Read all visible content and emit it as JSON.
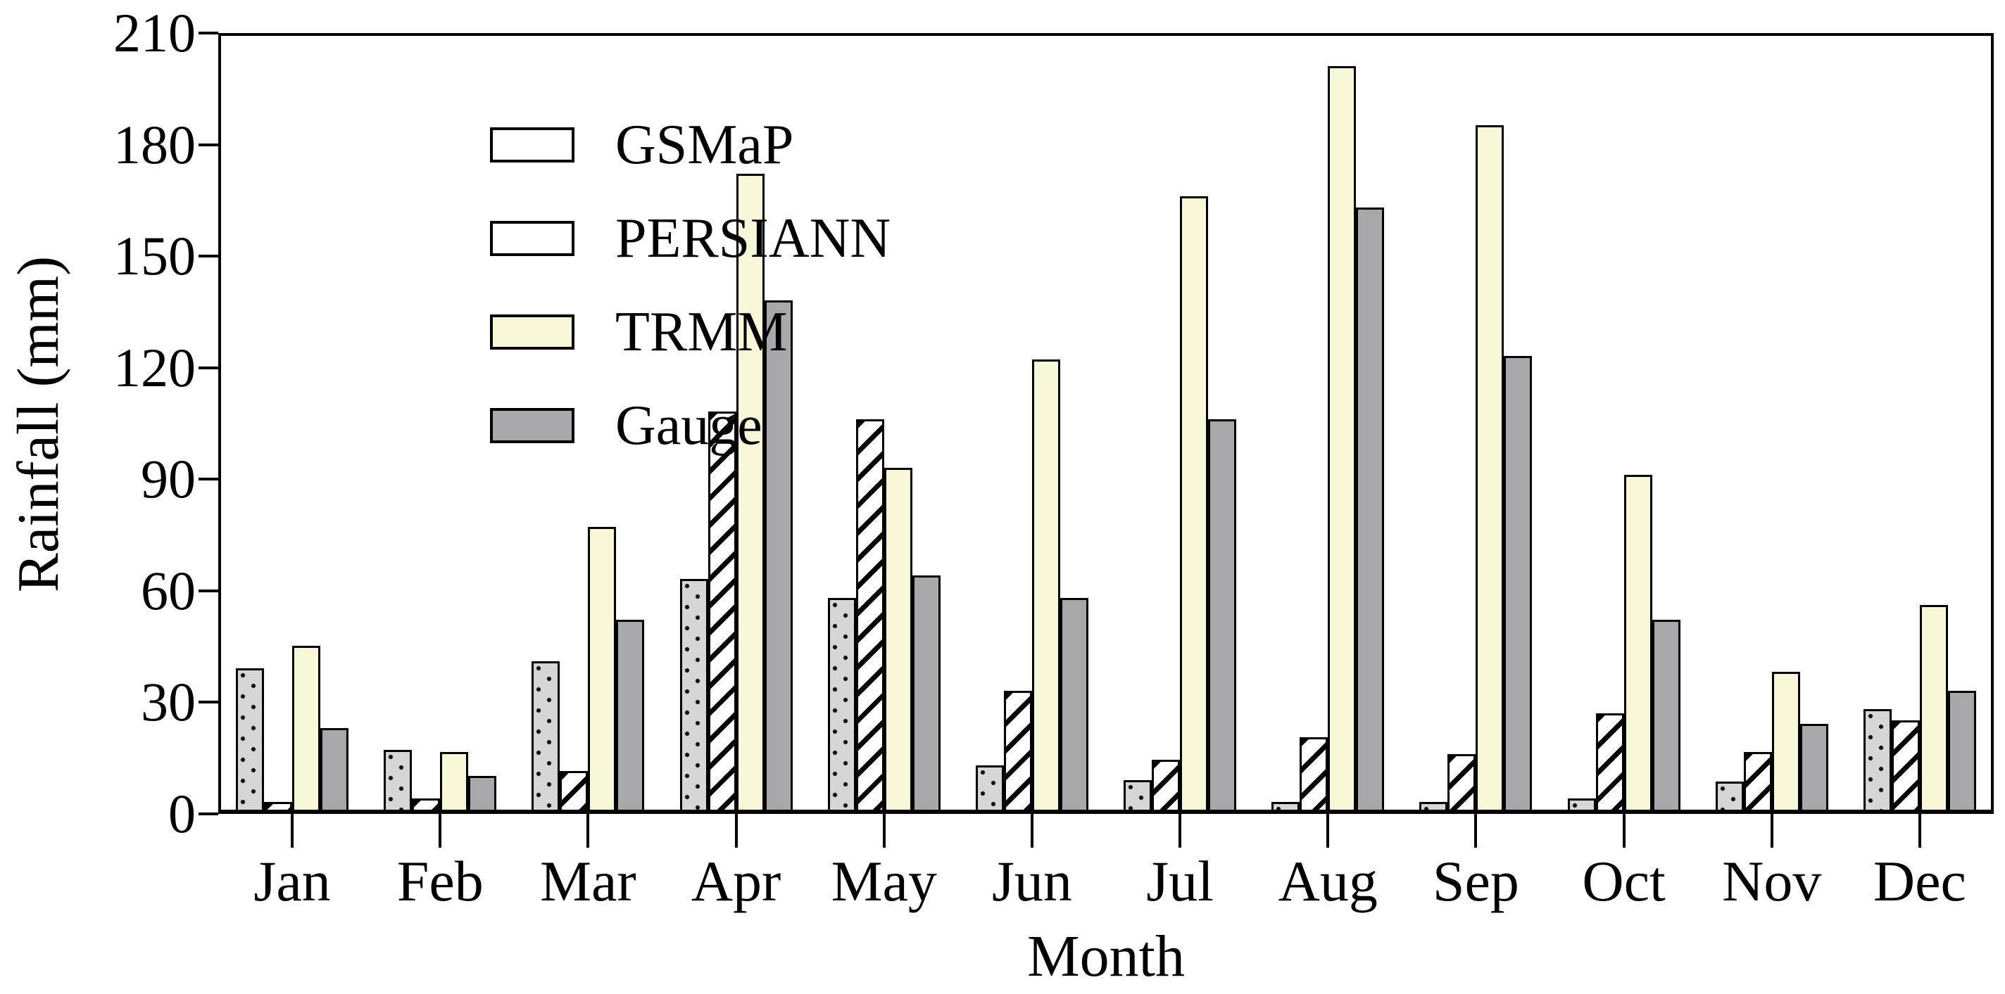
{
  "figure": {
    "background": "#ffffff"
  },
  "chart_data": {
    "type": "bar",
    "title": "",
    "xlabel": "Month",
    "ylabel": "Rainfall (mm)",
    "ylim": [
      0,
      210
    ],
    "yticks": [
      0,
      30,
      60,
      90,
      120,
      150,
      180,
      210
    ],
    "categories": [
      "Jan",
      "Feb",
      "Mar",
      "Apr",
      "May",
      "Jun",
      "Jul",
      "Aug",
      "Sep",
      "Oct",
      "Nov",
      "Dec"
    ],
    "series": [
      {
        "name": "GSMaP",
        "pattern": "dots",
        "fill": "#d6d6d6",
        "pattern_color": "#000000",
        "values": [
          38,
          16,
          40,
          62,
          57,
          12,
          8,
          2,
          2,
          3,
          7.5,
          27
        ]
      },
      {
        "name": "PERSIANN",
        "pattern": "hatch",
        "fill": "#ffffff",
        "pattern_color": "#000000",
        "values": [
          2,
          3,
          10.5,
          107,
          105,
          32,
          13.5,
          19.5,
          15,
          26,
          15.5,
          24
        ]
      },
      {
        "name": "TRMM",
        "pattern": "solid",
        "fill": "#f8f8d9",
        "pattern_color": null,
        "values": [
          44,
          15.5,
          76,
          171,
          92,
          121,
          165,
          200,
          184,
          90,
          37,
          55
        ]
      },
      {
        "name": "Gauge",
        "pattern": "solid",
        "fill": "#a8a8ab",
        "pattern_color": null,
        "values": [
          22,
          9,
          51,
          137,
          63,
          57,
          105,
          162,
          122,
          51,
          23,
          32
        ]
      }
    ],
    "legend_position": "upper-left",
    "grid": false,
    "colors": {
      "axis": "#000000",
      "bar_border": "#000000",
      "text": "#000000",
      "background": "#ffffff"
    }
  }
}
